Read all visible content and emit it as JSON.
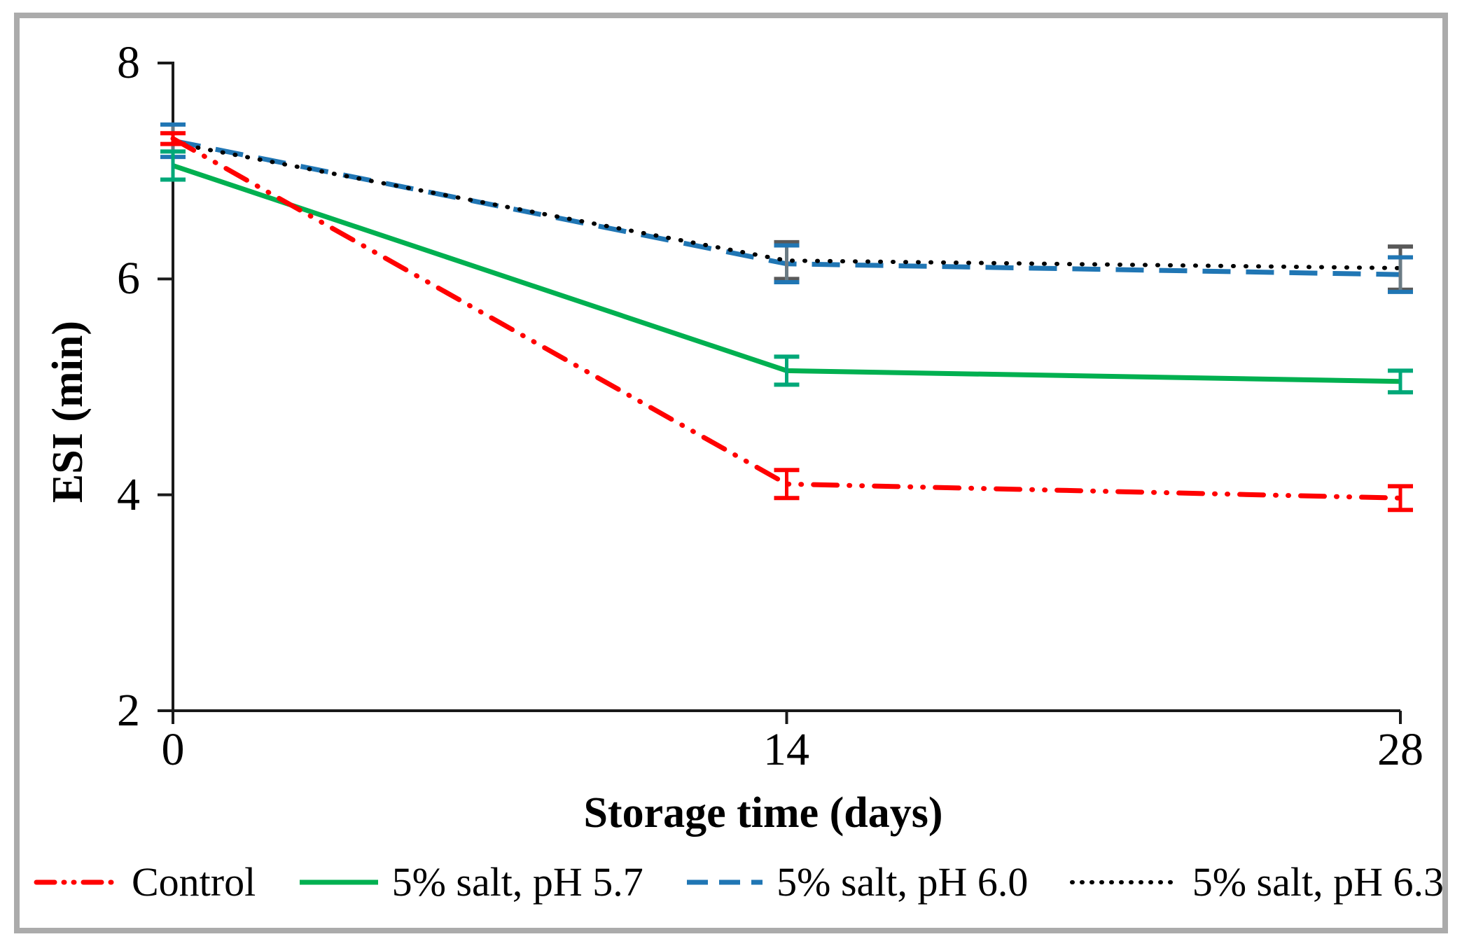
{
  "chart_data": {
    "type": "line",
    "title": "",
    "xlabel": "Storage time (days)",
    "ylabel": "ESI (min)",
    "x": [
      0,
      14,
      28
    ],
    "xtick_labels": [
      "0",
      "14",
      "28"
    ],
    "ytick_labels": [
      "8",
      "6",
      "4",
      "2"
    ],
    "ytick_values": [
      8,
      6,
      4,
      2
    ],
    "xlim": [
      0,
      28
    ],
    "ylim": [
      2,
      8
    ],
    "grid": false,
    "legend_position": "bottom",
    "axis_color": "#1a1a1a",
    "frame_color": "#ababab",
    "series": [
      {
        "name": "Control",
        "color": "#ff0000",
        "style": "dash-dot-dot",
        "values": [
          7.3,
          4.1,
          3.97
        ],
        "errors": [
          0.05,
          0.13,
          0.11
        ],
        "err_stem": "#ff0000",
        "err_cap": "#ff0000"
      },
      {
        "name": "5% salt, pH 5.7",
        "color": "#00b050",
        "style": "solid",
        "values": [
          7.05,
          5.15,
          5.05
        ],
        "errors": [
          0.13,
          0.13,
          0.1
        ],
        "err_stem": "#00a878",
        "err_cap": "#00a878"
      },
      {
        "name": "5% salt, pH 6.0",
        "color": "#2076b4",
        "style": "dashed",
        "values": [
          7.28,
          6.14,
          6.04
        ],
        "errors": [
          0.15,
          0.17,
          0.16
        ],
        "err_stem": "#6b7b84",
        "err_cap": "#2076b4"
      },
      {
        "name": "5% salt, pH 6.3",
        "color": "#000000",
        "style": "dotted",
        "values": [
          7.26,
          6.17,
          6.1
        ],
        "errors": [
          0,
          0.17,
          0.2
        ],
        "err_stem": "#595959",
        "err_cap": "#595959"
      }
    ]
  }
}
